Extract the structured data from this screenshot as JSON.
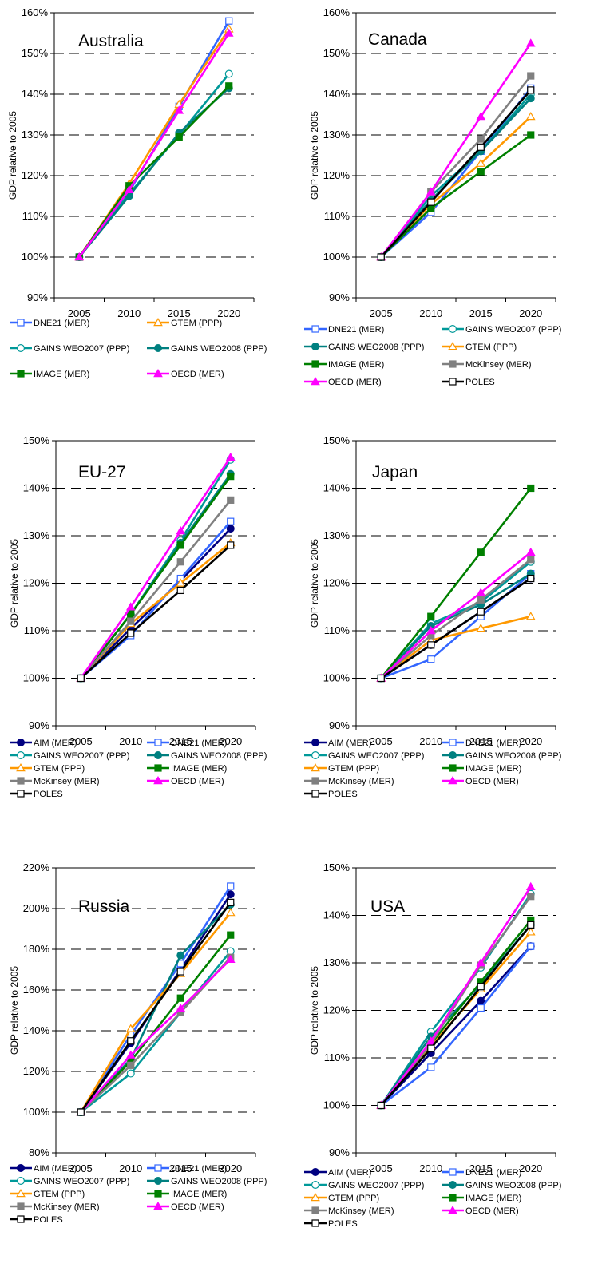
{
  "styles": {
    "AIM (MER)": {
      "color": "#000080",
      "marker": "circle",
      "fill": "filled"
    },
    "DNE21 (MER)": {
      "color": "#3366ff",
      "marker": "square",
      "fill": "open"
    },
    "GAINS WEO2007 (PPP)": {
      "color": "#009999",
      "marker": "circle",
      "fill": "open"
    },
    "GAINS WEO2008 (PPP)": {
      "color": "#008080",
      "marker": "circle",
      "fill": "filled"
    },
    "GTEM (PPP)": {
      "color": "#ff9900",
      "marker": "triangle",
      "fill": "open"
    },
    "IMAGE (MER)": {
      "color": "#008000",
      "marker": "square",
      "fill": "filled"
    },
    "McKinsey (MER)": {
      "color": "#808080",
      "marker": "square",
      "fill": "filled"
    },
    "OECD (MER)": {
      "color": "#ff00ff",
      "marker": "triangle",
      "fill": "filled"
    },
    "POLES": {
      "color": "#000000",
      "marker": "square",
      "fill": "open"
    }
  },
  "chart_data": [
    {
      "type": "line",
      "title": "Australia",
      "ylabel": "GDP relative to 2005",
      "x": [
        "2005",
        "2010",
        "2015",
        "2020"
      ],
      "ylim": [
        90,
        160
      ],
      "ystep": 10,
      "yunit": "%",
      "series": [
        {
          "name": "DNE21 (MER)",
          "values": [
            100,
            116,
            137,
            158
          ]
        },
        {
          "name": "GTEM (PPP)",
          "values": [
            100,
            118,
            137.5,
            156
          ]
        },
        {
          "name": "GAINS WEO2007 (PPP)",
          "values": [
            100,
            115.5,
            130,
            145
          ]
        },
        {
          "name": "GAINS WEO2008 (PPP)",
          "values": [
            100,
            115,
            130.5,
            141.5
          ]
        },
        {
          "name": "IMAGE (MER)",
          "values": [
            100,
            117.5,
            129.5,
            142
          ]
        },
        {
          "name": "OECD (MER)",
          "values": [
            100,
            116.5,
            136,
            155
          ]
        }
      ],
      "legend": {
        "cols": 2,
        "items": [
          "DNE21 (MER)",
          "GTEM (PPP)",
          "GAINS WEO2007 (PPP)",
          "GAINS WEO2008 (PPP)",
          "IMAGE (MER)",
          "OECD (MER)"
        ]
      }
    },
    {
      "type": "line",
      "title": "Canada",
      "ylabel": "GDP relative to 2005",
      "x": [
        "2005",
        "2010",
        "2015",
        "2020"
      ],
      "ylim": [
        90,
        160
      ],
      "ystep": 10,
      "yunit": "%",
      "series": [
        {
          "name": "DNE21 (MER)",
          "values": [
            100,
            111,
            126,
            141.5
          ]
        },
        {
          "name": "GAINS WEO2007 (PPP)",
          "values": [
            100,
            115,
            126,
            140
          ]
        },
        {
          "name": "GAINS WEO2008 (PPP)",
          "values": [
            100,
            114,
            126,
            139
          ]
        },
        {
          "name": "GTEM (PPP)",
          "values": [
            100,
            113,
            123,
            134.5
          ]
        },
        {
          "name": "IMAGE (MER)",
          "values": [
            100,
            112,
            121,
            130
          ]
        },
        {
          "name": "McKinsey (MER)",
          "values": [
            100,
            116,
            129,
            144.5
          ]
        },
        {
          "name": "OECD (MER)",
          "values": [
            100,
            116,
            134.5,
            152.5
          ]
        },
        {
          "name": "POLES",
          "values": [
            100,
            113.5,
            127,
            141
          ]
        }
      ],
      "legend": {
        "cols": 2,
        "items": [
          "DNE21 (MER)",
          "GAINS WEO2007 (PPP)",
          "GAINS WEO2008 (PPP)",
          "GTEM (PPP)",
          "IMAGE (MER)",
          "McKinsey (MER)",
          "OECD (MER)",
          "POLES"
        ]
      }
    },
    {
      "type": "line",
      "title": "EU-27",
      "ylabel": "GDP relative to 2005",
      "x": [
        "2005",
        "2010",
        "2015",
        "2020"
      ],
      "ylim": [
        90,
        150
      ],
      "ystep": 10,
      "yunit": "%",
      "series": [
        {
          "name": "AIM (MER)",
          "values": [
            100,
            110.5,
            120.5,
            131.5
          ]
        },
        {
          "name": "DNE21 (MER)",
          "values": [
            100,
            109,
            121,
            133
          ]
        },
        {
          "name": "GAINS WEO2007 (PPP)",
          "values": [
            100,
            113.5,
            129,
            146
          ]
        },
        {
          "name": "GAINS WEO2008 (PPP)",
          "values": [
            100,
            113.5,
            128.5,
            143
          ]
        },
        {
          "name": "GTEM (PPP)",
          "values": [
            100,
            111.5,
            120,
            128.5
          ]
        },
        {
          "name": "IMAGE (MER)",
          "values": [
            100,
            113.5,
            128,
            142.5
          ]
        },
        {
          "name": "McKinsey (MER)",
          "values": [
            100,
            112,
            124.5,
            137.5
          ]
        },
        {
          "name": "OECD (MER)",
          "values": [
            100,
            115,
            131,
            146.5
          ]
        },
        {
          "name": "POLES",
          "values": [
            100,
            109.5,
            118.5,
            128
          ]
        }
      ],
      "legend": {
        "cols": 2,
        "items": [
          "AIM (MER)",
          "DNE21 (MER)",
          "GAINS WEO2007 (PPP)",
          "GAINS WEO2008 (PPP)",
          "GTEM (PPP)",
          "IMAGE (MER)",
          "McKinsey (MER)",
          "OECD (MER)",
          "POLES"
        ]
      }
    },
    {
      "type": "line",
      "title": "Japan",
      "ylabel": "GDP relative to 2005",
      "x": [
        "2005",
        "2010",
        "2015",
        "2020"
      ],
      "ylim": [
        90,
        150
      ],
      "ystep": 10,
      "yunit": "%",
      "series": [
        {
          "name": "AIM (MER)",
          "values": [
            100,
            107,
            114,
            121
          ]
        },
        {
          "name": "DNE21 (MER)",
          "values": [
            100,
            104,
            113,
            122
          ]
        },
        {
          "name": "GAINS WEO2007 (PPP)",
          "values": [
            100,
            111.5,
            116,
            124.5
          ]
        },
        {
          "name": "GAINS WEO2008 (PPP)",
          "values": [
            100,
            111,
            115.5,
            122
          ]
        },
        {
          "name": "GTEM (PPP)",
          "values": [
            100,
            108,
            110.5,
            113
          ]
        },
        {
          "name": "IMAGE (MER)",
          "values": [
            100,
            113,
            126.5,
            140
          ]
        },
        {
          "name": "McKinsey (MER)",
          "values": [
            100,
            109,
            116.5,
            125
          ]
        },
        {
          "name": "OECD (MER)",
          "values": [
            100,
            110,
            118,
            126.5
          ]
        },
        {
          "name": "POLES",
          "values": [
            100,
            107,
            114,
            121
          ]
        }
      ],
      "legend": {
        "cols": 2,
        "items": [
          "AIM (MER)",
          "DNE21 (MER)",
          "GAINS WEO2007 (PPP)",
          "GAINS WEO2008 (PPP)",
          "GTEM (PPP)",
          "IMAGE (MER)",
          "McKinsey (MER)",
          "OECD (MER)",
          "POLES"
        ]
      }
    },
    {
      "type": "line",
      "title": "Russia",
      "ylabel": "GDP relative to 2005",
      "x": [
        "2005",
        "2010",
        "2015",
        "2020"
      ],
      "ylim": [
        80,
        220
      ],
      "ystep": 20,
      "yunit": "%",
      "series": [
        {
          "name": "AIM (MER)",
          "values": [
            100,
            134,
            170,
            207
          ]
        },
        {
          "name": "DNE21 (MER)",
          "values": [
            100,
            138,
            173,
            211
          ]
        },
        {
          "name": "GAINS WEO2007 (PPP)",
          "values": [
            100,
            119,
            149,
            179
          ]
        },
        {
          "name": "GAINS WEO2008 (PPP)",
          "values": [
            100,
            126,
            177,
            202
          ]
        },
        {
          "name": "GTEM (PPP)",
          "values": [
            100,
            141,
            168,
            198
          ]
        },
        {
          "name": "IMAGE (MER)",
          "values": [
            100,
            125,
            156,
            187
          ]
        },
        {
          "name": "McKinsey (MER)",
          "values": [
            100,
            123,
            149,
            176
          ]
        },
        {
          "name": "OECD (MER)",
          "values": [
            100,
            128,
            151,
            175
          ]
        },
        {
          "name": "POLES",
          "values": [
            100,
            135,
            169,
            203
          ]
        }
      ],
      "legend": {
        "cols": 2,
        "items": [
          "AIM (MER)",
          "DNE21 (MER)",
          "GAINS WEO2007 (PPP)",
          "GAINS WEO2008 (PPP)",
          "GTEM (PPP)",
          "IMAGE (MER)",
          "McKinsey (MER)",
          "OECD (MER)",
          "POLES"
        ]
      }
    },
    {
      "type": "line",
      "title": "USA",
      "ylabel": "GDP relative to 2005",
      "x": [
        "2005",
        "2010",
        "2015",
        "2020"
      ],
      "ylim": [
        90,
        150
      ],
      "ystep": 10,
      "yunit": "%",
      "series": [
        {
          "name": "AIM (MER)",
          "values": [
            100,
            111,
            122,
            133.5
          ]
        },
        {
          "name": "DNE21 (MER)",
          "values": [
            100,
            108,
            120.5,
            133.5
          ]
        },
        {
          "name": "GAINS WEO2007 (PPP)",
          "values": [
            100,
            115.5,
            129,
            144.5
          ]
        },
        {
          "name": "GAINS WEO2008 (PPP)",
          "values": [
            100,
            114.5,
            125.5,
            138
          ]
        },
        {
          "name": "GTEM (PPP)",
          "values": [
            100,
            112.5,
            124.5,
            136.5
          ]
        },
        {
          "name": "IMAGE (MER)",
          "values": [
            100,
            113,
            126,
            139
          ]
        },
        {
          "name": "McKinsey (MER)",
          "values": [
            100,
            113,
            129.5,
            144
          ]
        },
        {
          "name": "OECD (MER)",
          "values": [
            100,
            113.5,
            130,
            146
          ]
        },
        {
          "name": "POLES",
          "values": [
            100,
            112,
            125,
            138
          ]
        }
      ],
      "legend": {
        "cols": 2,
        "items": [
          "AIM (MER)",
          "DNE21 (MER)",
          "GAINS WEO2007 (PPP)",
          "GAINS WEO2008 (PPP)",
          "GTEM (PPP)",
          "IMAGE (MER)",
          "McKinsey (MER)",
          "OECD (MER)",
          "POLES"
        ]
      }
    }
  ]
}
